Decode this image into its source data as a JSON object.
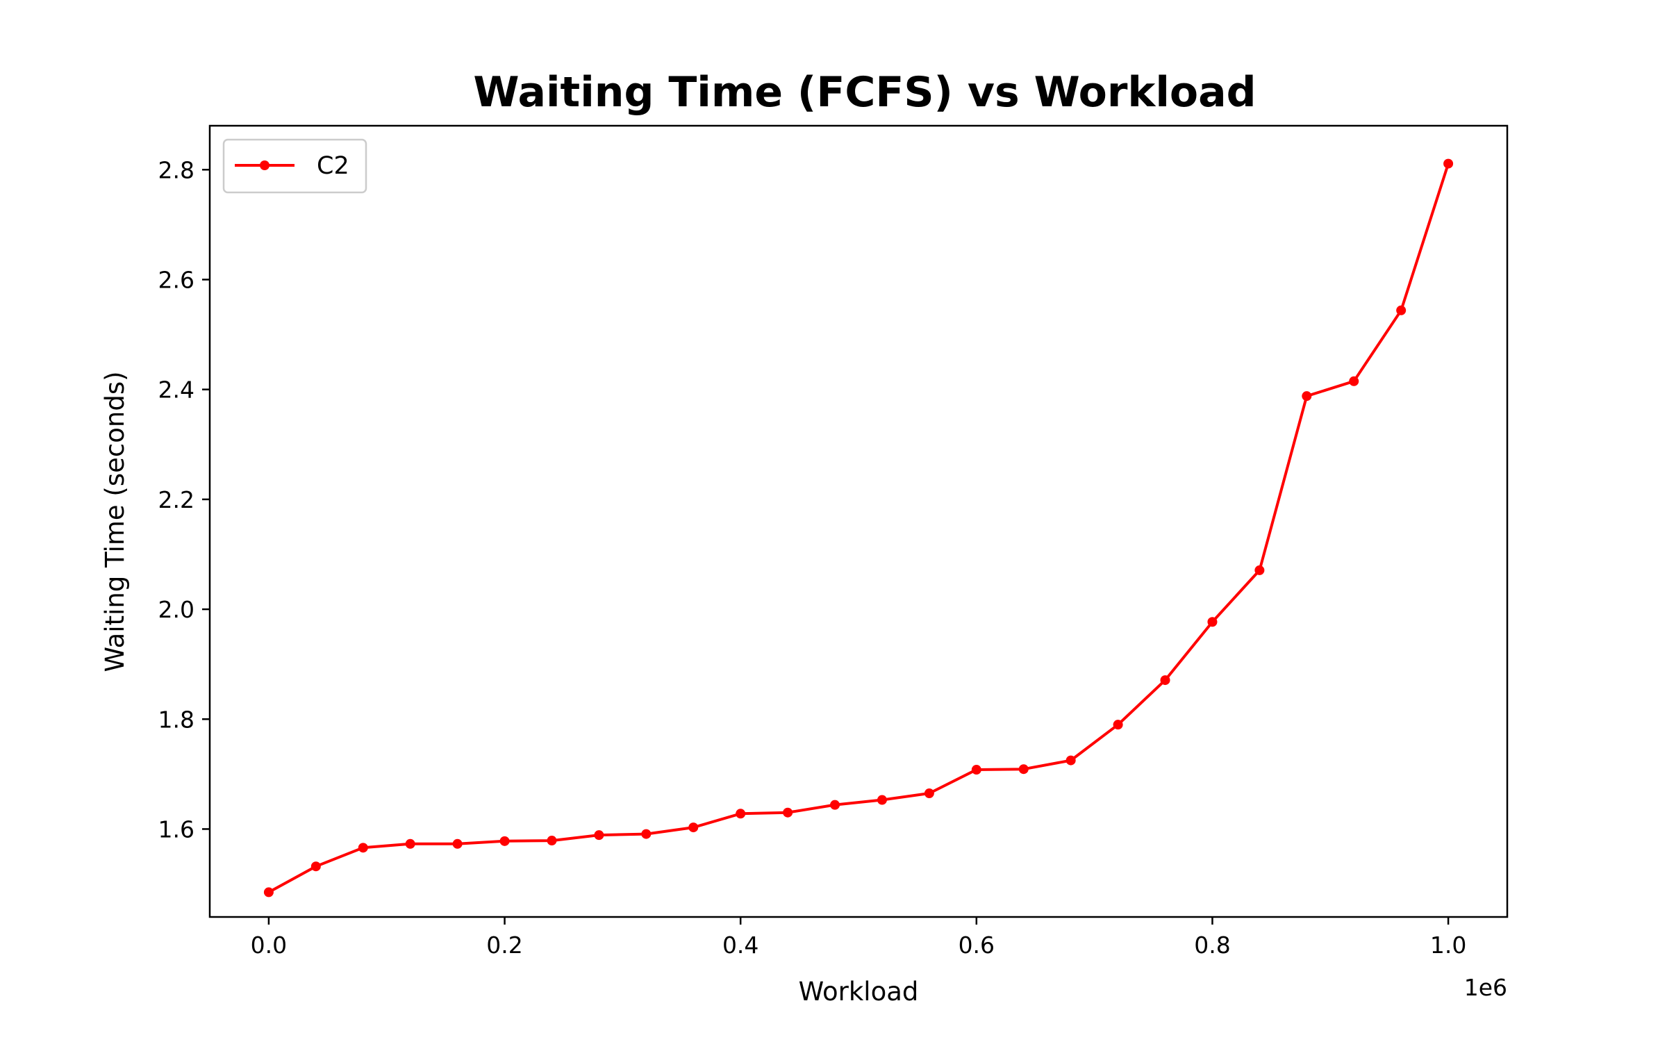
{
  "chart_data": {
    "type": "line",
    "title": "Waiting Time (FCFS) vs Workload",
    "xlabel": "Workload",
    "ylabel": "Waiting Time (seconds)",
    "x_offset_label": "1e6",
    "xlim": [
      -0.05,
      1.05
    ],
    "ylim": [
      1.44,
      2.88
    ],
    "xticks": [
      0.0,
      0.2,
      0.4,
      0.6,
      0.8,
      1.0
    ],
    "xtick_labels": [
      "0.0",
      "0.2",
      "0.4",
      "0.6",
      "0.8",
      "1.0"
    ],
    "yticks": [
      1.6,
      1.8,
      2.0,
      2.2,
      2.4,
      2.6,
      2.8
    ],
    "ytick_labels": [
      "1.6",
      "1.8",
      "2.0",
      "2.2",
      "2.4",
      "2.6",
      "2.8"
    ],
    "grid": false,
    "legend_position": "top-left",
    "x": [
      0.0,
      0.04,
      0.08,
      0.12,
      0.16,
      0.2,
      0.24,
      0.28,
      0.32,
      0.36,
      0.4,
      0.44,
      0.48,
      0.52,
      0.56,
      0.6,
      0.64,
      0.68,
      0.72,
      0.76,
      0.8,
      0.84,
      0.88,
      0.92,
      0.96,
      1.0
    ],
    "series": [
      {
        "name": "C2",
        "color": "#ff0000",
        "values": [
          1.485,
          1.532,
          1.566,
          1.573,
          1.573,
          1.578,
          1.579,
          1.589,
          1.591,
          1.603,
          1.628,
          1.63,
          1.644,
          1.653,
          1.665,
          1.708,
          1.709,
          1.725,
          1.79,
          1.871,
          1.977,
          2.071,
          2.388,
          2.415,
          2.544,
          2.811
        ]
      }
    ]
  }
}
